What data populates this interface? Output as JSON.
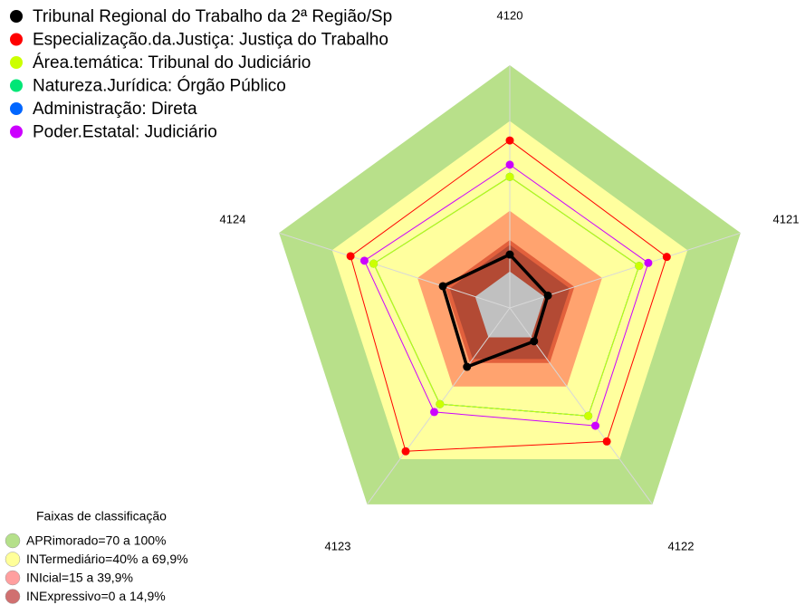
{
  "chart_data": {
    "type": "radar",
    "categories": [
      "4120",
      "4121",
      "4122",
      "4123",
      "4124"
    ],
    "ylim": [
      0,
      100
    ],
    "series": [
      {
        "name": "Tribunal Regional do Trabalho da 2ª Região/Sp",
        "color": "#000000",
        "values": [
          22,
          16.5,
          17,
          30,
          29
        ]
      },
      {
        "name": "Especialização.da.Justiça: Justiça do Trabalho",
        "color": "#ff0000",
        "values": [
          69,
          68,
          68,
          73,
          69
        ]
      },
      {
        "name": "Área.temática: Tribunal do Judiciário",
        "color": "#ccff00",
        "values": [
          54,
          56,
          55,
          49,
          59
        ]
      },
      {
        "name": "Natureza.Jurídica: Órgão Público",
        "color": "#00e676",
        "values": [
          54,
          56,
          55,
          49,
          59
        ]
      },
      {
        "name": "Administração: Direta",
        "color": "#0066ff",
        "values": [
          54,
          56,
          55,
          49,
          59
        ]
      },
      {
        "name": "Poder.Estatal: Judiciário",
        "color": "#cc00ff",
        "values": [
          59,
          60,
          60,
          53,
          63
        ]
      }
    ],
    "bands_title": "Faixas de classificação",
    "bands": [
      {
        "label": "APRimorado=70 a 100%",
        "color": "#b5e08a"
      },
      {
        "label": "INTermediário=40% a 69,9%",
        "color": "#ffff99"
      },
      {
        "label": "INIcial=15 a 39,9%",
        "color": "#ff9f9f"
      },
      {
        "label": "INExpressivo=0 a 14,9%",
        "color": "#d07070"
      }
    ]
  }
}
